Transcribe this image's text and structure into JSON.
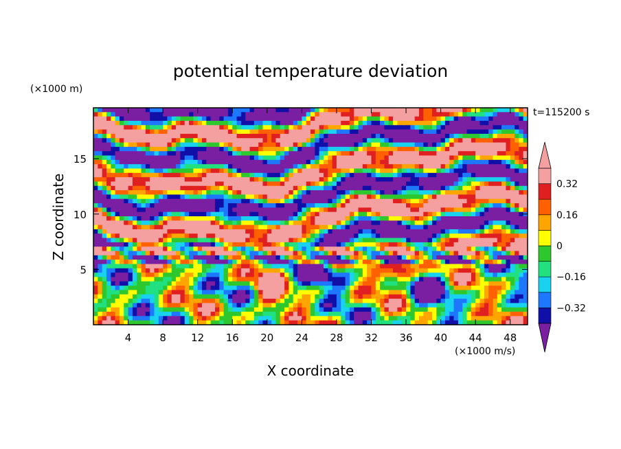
{
  "chart_data": {
    "type": "heatmap",
    "title": "potential temperature deviation",
    "xlabel": "X coordinate",
    "ylabel": "Z coordinate",
    "x_unit": "(×1000 m/s)",
    "y_unit": "(×1000 m)",
    "time_label": "t=115200 s",
    "xlim": [
      0,
      50
    ],
    "ylim": [
      0,
      19.6
    ],
    "x_ticks": [
      4,
      8,
      12,
      16,
      20,
      24,
      28,
      32,
      36,
      40,
      44,
      48
    ],
    "y_ticks": [
      5,
      10,
      15
    ],
    "colorbar": {
      "levels": [
        -0.4,
        -0.32,
        -0.24,
        -0.16,
        -0.08,
        0,
        0.08,
        0.16,
        0.24,
        0.32,
        0.4
      ],
      "labels": [
        "0.32",
        "0.16",
        "0",
        "-0.16",
        "-0.32"
      ],
      "label_values": [
        0.32,
        0.16,
        0,
        -0.16,
        -0.32
      ],
      "extend": "both",
      "colors": [
        "#7a1fa2",
        "#1010a8",
        "#1e78ff",
        "#18d2f0",
        "#20e080",
        "#2ec82e",
        "#ffff00",
        "#ffa500",
        "#ff6000",
        "#e02020",
        "#f4a0a0"
      ]
    }
  }
}
